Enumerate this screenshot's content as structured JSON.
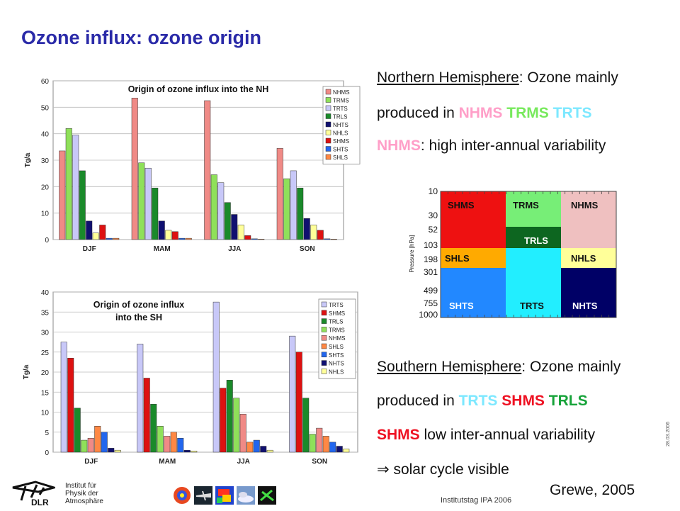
{
  "title": "Ozone influx: ozone origin",
  "nh_text": {
    "line1_underlined": "Northern Hemisphere",
    "line1_rest": ": Ozone mainly",
    "line2_prefix": "produced in ",
    "line2_a": "NHMS",
    "line2_b": "TRMS",
    "line2_c": "TRTS",
    "line3_key": "NHMS",
    "line3_rest": ": high inter-annual variability"
  },
  "sh_text": {
    "line1_underlined": "Southern Hemisphere",
    "line1_rest": ": Ozone mainly",
    "line2_prefix": "produced in ",
    "line2_a": "TRTS",
    "line2_b": "SHMS",
    "line2_c": "TRLS",
    "line3_key": "SHMS",
    "line3_rest": " low inter-annual variability",
    "line4_symbol": "⇒",
    "line4_rest": " solar cycle visible"
  },
  "footer": {
    "institute_line1": "Institut für",
    "institute_line2": "Physik der",
    "institute_line3": "Atmosphäre",
    "logo_text": "DLR",
    "event": "Institutstag IPA 2006",
    "credit": "Grewe, 2005",
    "side_date": "28.03.2006"
  },
  "colors": {
    "NHMS": "#f08a86",
    "TRMS": "#8fe05a",
    "TRTS": "#c8c8f8",
    "TRLS": "#1a8a2a",
    "NHTS": "#101070",
    "NHLS": "#ffff99",
    "SHMS": "#dd1111",
    "SHTS": "#2266ee",
    "SHLS": "#ff8844"
  },
  "chart_data": [
    {
      "type": "bar",
      "title": "Origin of ozone influx into the NH",
      "ylabel": "Tg/a",
      "ylim": [
        0,
        60
      ],
      "yticks": [
        0,
        10,
        20,
        30,
        40,
        50,
        60
      ],
      "categories": [
        "DJF",
        "MAM",
        "JJA",
        "SON"
      ],
      "grid": true,
      "legend_position": "right",
      "series": [
        {
          "name": "NHMS",
          "values": [
            33.5,
            53.5,
            52.5,
            34.5
          ]
        },
        {
          "name": "TRMS",
          "values": [
            42,
            29,
            24.5,
            23
          ]
        },
        {
          "name": "TRTS",
          "values": [
            39.5,
            27,
            21.5,
            26
          ]
        },
        {
          "name": "TRLS",
          "values": [
            26,
            19.5,
            14,
            19.5
          ]
        },
        {
          "name": "NHTS",
          "values": [
            7,
            7,
            9.5,
            8
          ]
        },
        {
          "name": "NHLS",
          "values": [
            2.5,
            3.5,
            5.5,
            5.5
          ]
        },
        {
          "name": "SHMS",
          "values": [
            5.5,
            3,
            1.5,
            3.5
          ]
        },
        {
          "name": "SHTS",
          "values": [
            0.5,
            0.5,
            0.3,
            0.3
          ]
        },
        {
          "name": "SHLS",
          "values": [
            0.5,
            0.5,
            0.2,
            0.2
          ]
        }
      ]
    },
    {
      "type": "bar",
      "title": "Origin of ozone influx into the SH",
      "ylabel": "Tg/a",
      "ylim": [
        0,
        40
      ],
      "yticks": [
        0,
        5,
        10,
        15,
        20,
        25,
        30,
        35,
        40
      ],
      "categories": [
        "DJF",
        "MAM",
        "JJA",
        "SON"
      ],
      "grid": true,
      "legend_position": "right",
      "series": [
        {
          "name": "TRTS",
          "values": [
            27.5,
            27,
            37.5,
            29
          ]
        },
        {
          "name": "SHMS",
          "values": [
            23.5,
            18.5,
            16,
            25
          ]
        },
        {
          "name": "TRLS",
          "values": [
            11,
            12,
            18,
            13.5
          ]
        },
        {
          "name": "TRMS",
          "values": [
            3,
            6.5,
            13.5,
            4.5
          ]
        },
        {
          "name": "NHMS",
          "values": [
            3.5,
            4,
            9.5,
            6
          ]
        },
        {
          "name": "SHLS",
          "values": [
            6.5,
            5,
            2.5,
            4
          ]
        },
        {
          "name": "SHTS",
          "values": [
            5,
            3.5,
            3,
            2.5
          ]
        },
        {
          "name": "NHTS",
          "values": [
            1,
            0.5,
            1.5,
            1.5
          ]
        },
        {
          "name": "NHLS",
          "values": [
            0.5,
            0.3,
            0.5,
            0.8
          ]
        }
      ]
    }
  ],
  "region_diagram": {
    "ylabel": "Pressure [hPa]",
    "pressure_labels": [
      "10",
      "30",
      "52",
      "103",
      "198",
      "301",
      "499",
      "755",
      "1000"
    ],
    "cells": [
      {
        "label": "SHMS",
        "color": "#ee1111"
      },
      {
        "label": "TRMS",
        "color": "#77ee77"
      },
      {
        "label": "NHMS",
        "color": "#efc0c0"
      },
      {
        "label": "TRLS",
        "color": "#0d6620"
      },
      {
        "label": "SHLS",
        "color": "#ffaa00"
      },
      {
        "label": "NHLS",
        "color": "#ffff99"
      },
      {
        "label": "SHTS",
        "color": "#2288ff"
      },
      {
        "label": "TRTS",
        "color": "#22eeff"
      },
      {
        "label": "NHTS",
        "color": "#000066"
      }
    ]
  }
}
